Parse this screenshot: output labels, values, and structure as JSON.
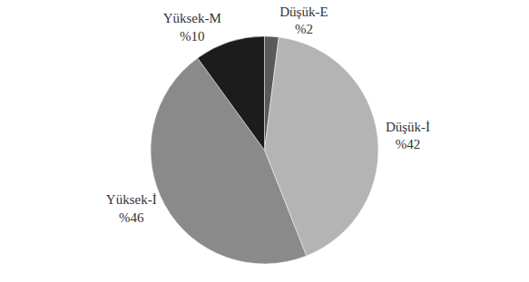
{
  "chart_data": {
    "type": "pie",
    "categories": [
      "Düşük-E",
      "Düşük-İ",
      "Yüksek-İ",
      "Yüksek-M"
    ],
    "values": [
      2,
      42,
      46,
      10
    ],
    "value_labels": [
      "%2",
      "%42",
      "%46",
      "%10"
    ],
    "colors": [
      "#5a5a5a",
      "#b4b4b4",
      "#8a8a8a",
      "#1c1c1c"
    ],
    "data_labels": true
  }
}
